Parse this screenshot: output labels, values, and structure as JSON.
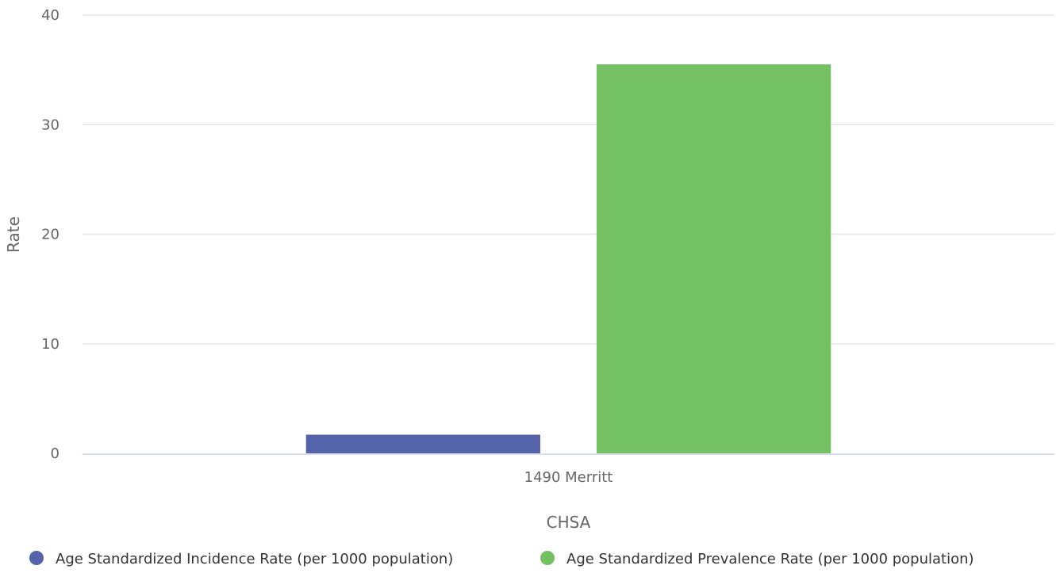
{
  "chart_data": {
    "type": "bar",
    "categories": [
      "1490 Merritt"
    ],
    "series": [
      {
        "name": "Age Standardized Incidence Rate (per 1000 population)",
        "values": [
          1.7
        ],
        "color": "#5564aa"
      },
      {
        "name": "Age Standardized Prevalence Rate (per 1000 population)",
        "values": [
          35.5
        ],
        "color": "#73c163"
      }
    ],
    "title": "",
    "xlabel": "CHSA",
    "ylabel": "Rate",
    "ylim": [
      0,
      40
    ],
    "yticks": [
      0,
      10,
      20,
      30,
      40
    ],
    "grid": true,
    "legend_position": "bottom-left"
  },
  "colors": {
    "grid": "#e6e6e6",
    "axis_line": "#ccd6eb",
    "tick_text": "#666666",
    "legend_text": "#333333"
  }
}
